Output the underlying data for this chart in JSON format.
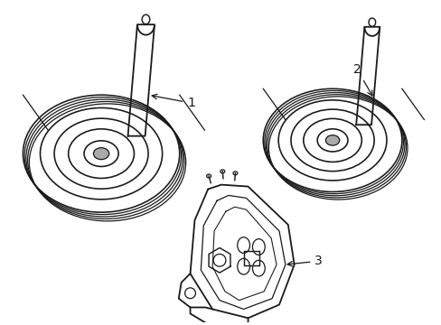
{
  "background_color": "#ffffff",
  "line_color": "#1a1a1a",
  "line_width": 1.3,
  "label1": "1",
  "label2": "2",
  "label3": "3",
  "font_size": 10
}
